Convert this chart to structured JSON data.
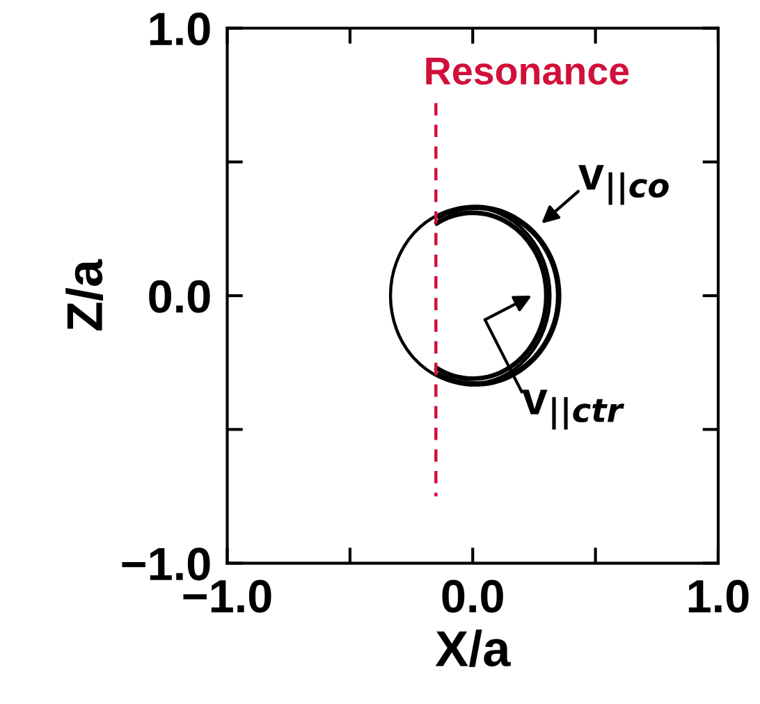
{
  "chart_data": {
    "type": "line",
    "xlabel": "X/a",
    "ylabel": "Z/a",
    "xlim": [
      -1.0,
      1.0
    ],
    "ylim": [
      -1.0,
      1.0
    ],
    "xticks": [
      {
        "value": -1.0,
        "label": "−1.0"
      },
      {
        "value": -0.5,
        "label": null
      },
      {
        "value": 0.0,
        "label": "0.0"
      },
      {
        "value": 0.5,
        "label": null
      },
      {
        "value": 1.0,
        "label": "1.0"
      }
    ],
    "yticks": [
      {
        "value": -1.0,
        "label": "−1.0"
      },
      {
        "value": -0.5,
        "label": null
      },
      {
        "value": 0.0,
        "label": "0.0"
      },
      {
        "value": 0.5,
        "label": null
      },
      {
        "value": 1.0,
        "label": "1.0"
      }
    ],
    "grid": false,
    "legend": false,
    "marker": "none",
    "series": [
      {
        "name": "Resonance",
        "color": "#d0103a",
        "line_style": "dashed",
        "x": [
          -0.15,
          -0.15
        ],
        "values": [
          0.72,
          -0.75
        ]
      }
    ],
    "annotations": [
      "v$_{||co}$",
      "v$_{||ctr}$"
    ]
  }
}
